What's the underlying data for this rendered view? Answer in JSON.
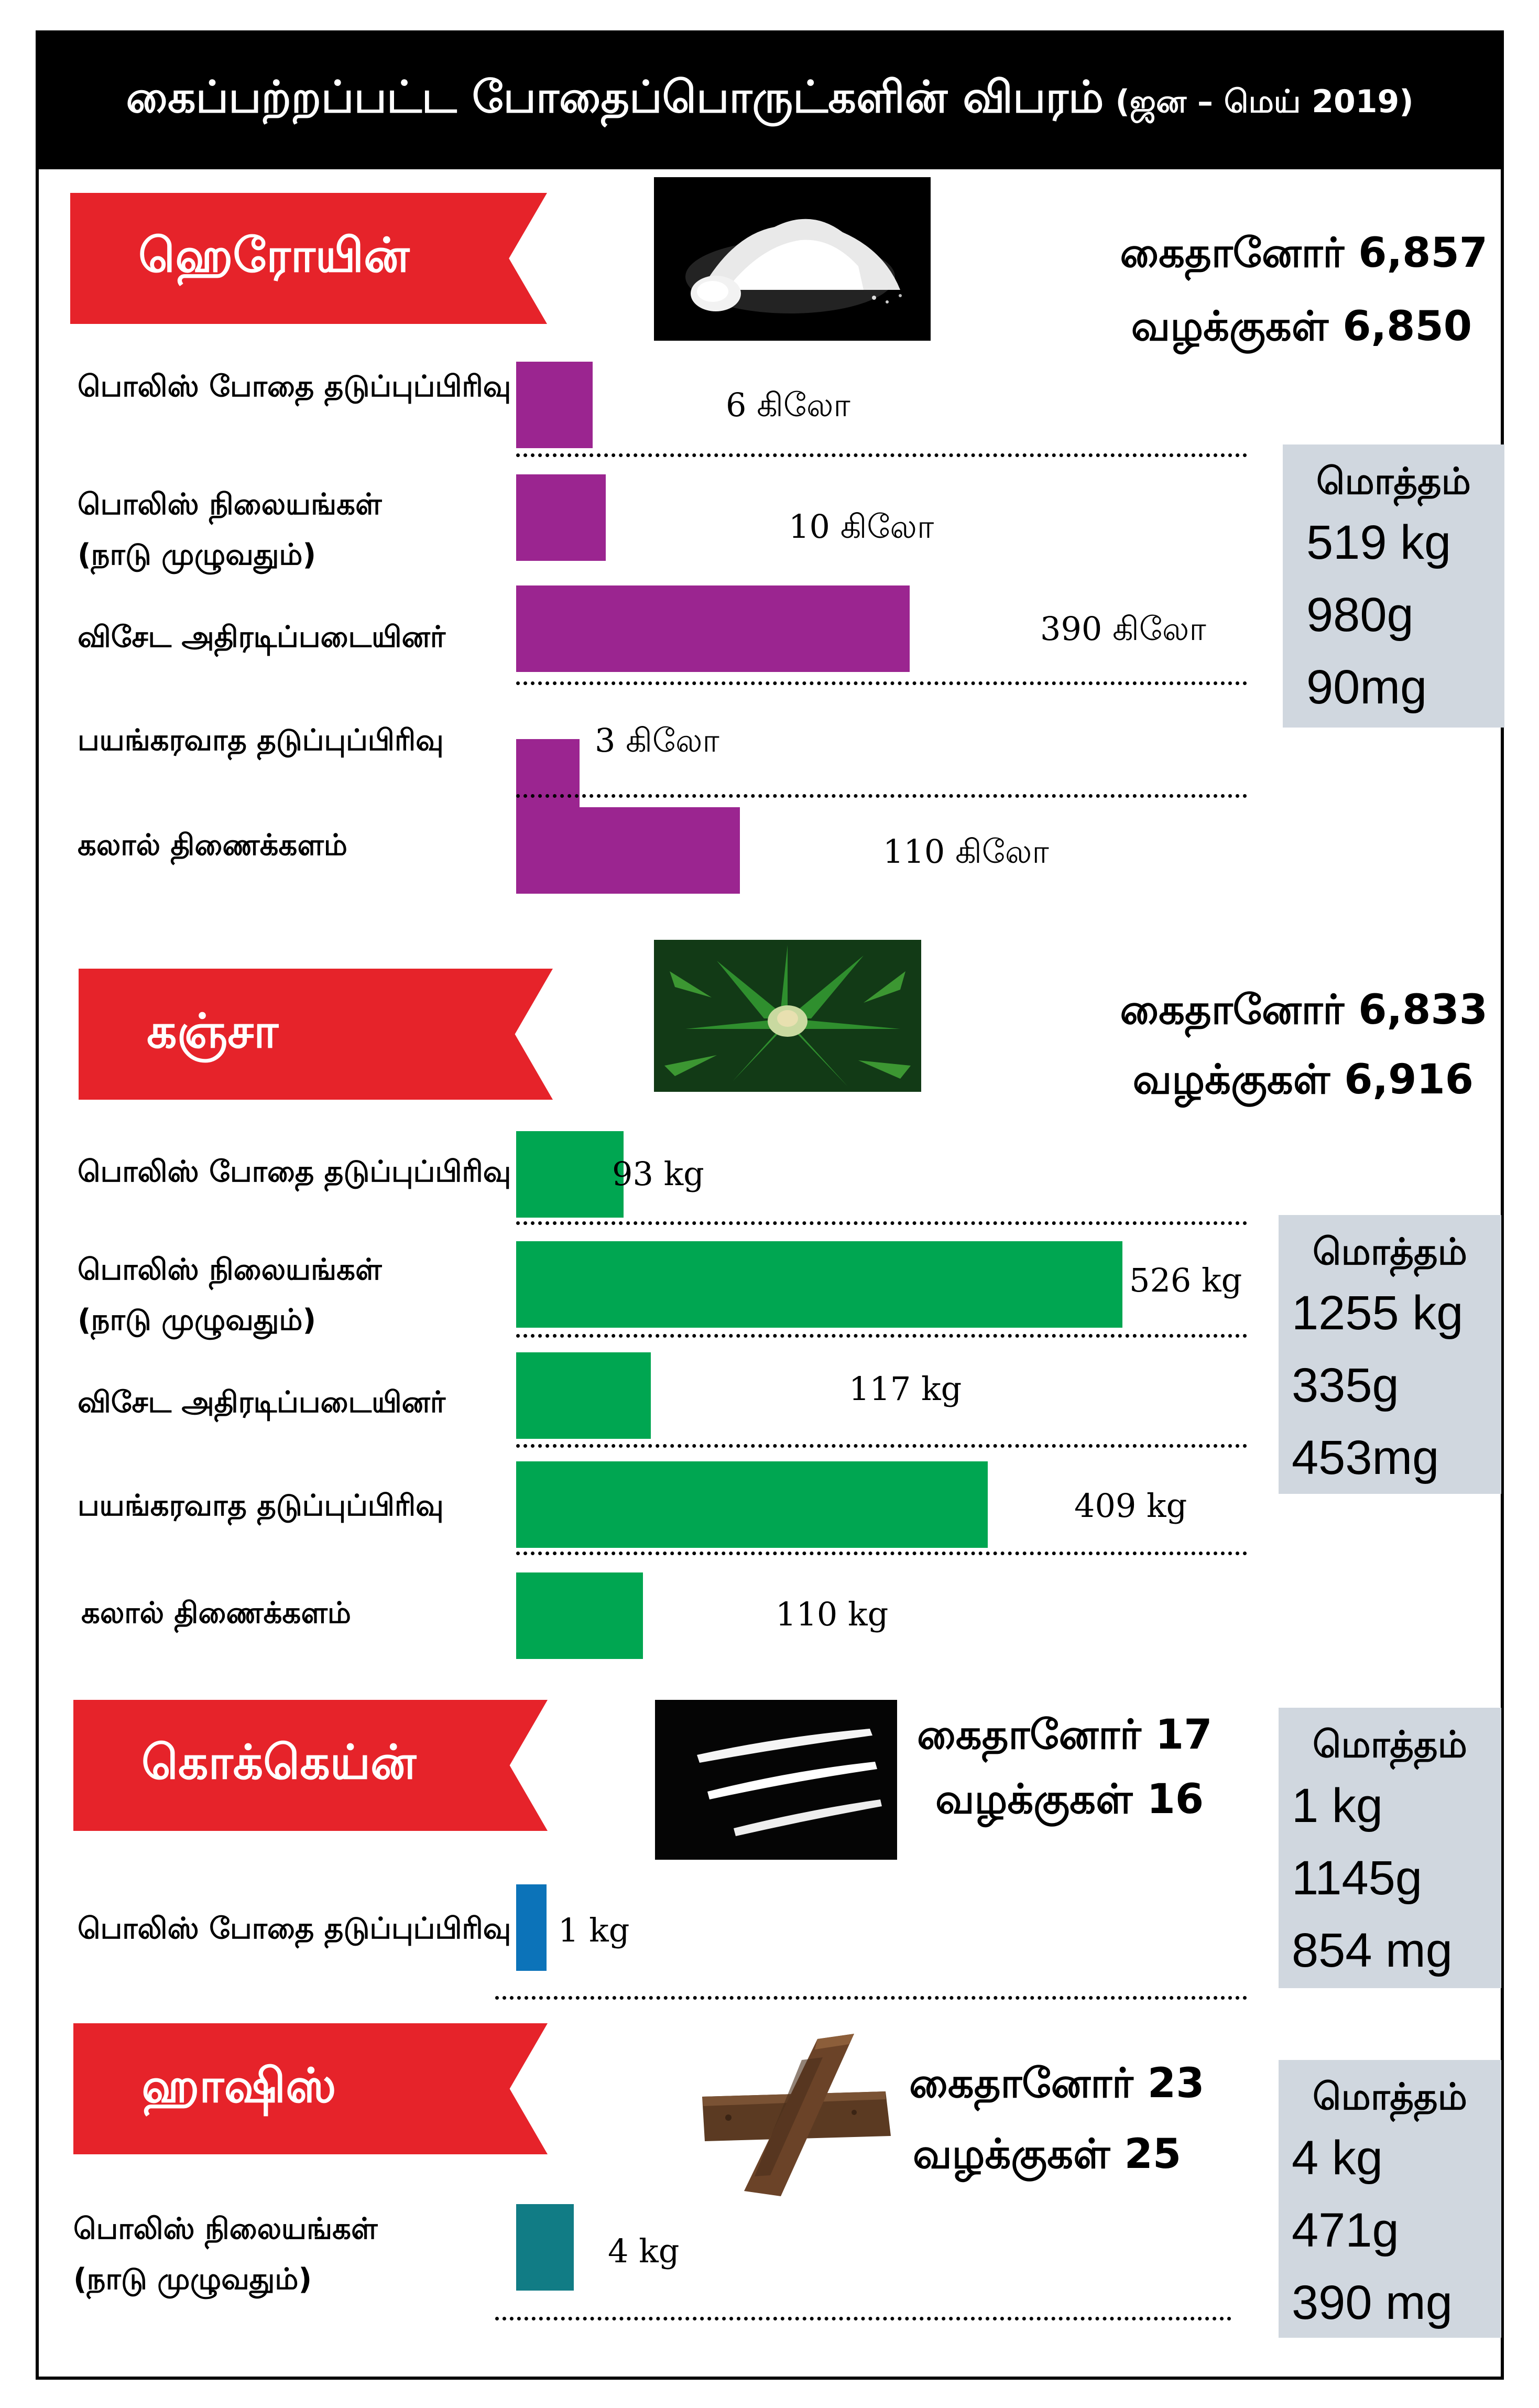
{
  "header": {
    "title": "கைப்பற்றப்பட்ட போதைப்பொருட்களின் விபரம்",
    "period": "(ஜன – மெய் 2019)"
  },
  "colors": {
    "heroin": "#9b2590",
    "ganja": "#00a651",
    "cocaine": "#0c73b9",
    "hashish": "#117c85",
    "ribbon": "#e6232a",
    "total_box": "#d0d7df"
  },
  "sections": {
    "heroin": {
      "name": "ஹெரோயின்",
      "image_icon": "white-powder-photo",
      "suspects": "கைதானோர் 6,857",
      "cases": "வழக்குகள் 6,850",
      "total": {
        "heading": "மொத்தம்",
        "lines": [
          "519 kg",
          "980g",
          "90mg"
        ]
      }
    },
    "ganja": {
      "name": "கஞ்சா",
      "image_icon": "cannabis-plant-photo",
      "suspects": "கைதானோர் 6,833",
      "cases": "வழக்குகள் 6,916",
      "total": {
        "heading": "மொத்தம்",
        "lines": [
          "1255 kg",
          "335g",
          "453mg"
        ]
      }
    },
    "cocaine": {
      "name": "கொக்கெய்ன்",
      "image_icon": "cocaine-lines-photo",
      "suspects": "கைதானோர் 17",
      "cases": "வழக்குகள் 16",
      "total": {
        "heading": "மொத்தம்",
        "lines": [
          "1 kg",
          "1145g",
          "854 mg"
        ]
      }
    },
    "hashish": {
      "name": "ஹாஷிஸ்",
      "image_icon": "hashish-block-photo",
      "suspects": "கைதானோர் 23",
      "cases": "வழக்குகள் 25",
      "total": {
        "heading": "மொத்தம்",
        "lines": [
          "4 kg",
          "471g",
          "390 mg"
        ]
      }
    }
  },
  "chart_data": [
    {
      "type": "bar",
      "orientation": "horizontal",
      "series_name": "ஹெரோயின்",
      "categories": [
        "பொலிஸ் போதை தடுப்புப்பிரிவு",
        "பொலிஸ் நிலையங்கள் (நாடு முழுவதும்)",
        "விசேட அதிரடிப்படையினர்",
        "பயங்கரவாத தடுப்புப்பிரிவு",
        "கலால் திணைக்களம்"
      ],
      "values": [
        6,
        10,
        390,
        3,
        110
      ],
      "unit": "kg",
      "data_labels": [
        "6 கிலோ",
        "10 கிலோ",
        "390 கிலோ",
        "3 கிலோ",
        "110 கிலோ"
      ]
    },
    {
      "type": "bar",
      "orientation": "horizontal",
      "series_name": "கஞ்சா",
      "categories": [
        "பொலிஸ் போதை தடுப்புப்பிரிவு",
        "பொலிஸ் நிலையங்கள் (நாடு முழுவதும்)",
        "விசேட அதிரடிப்படையினர்",
        "பயங்கரவாத தடுப்புப்பிரிவு",
        "கலால் திணைக்களம்"
      ],
      "values": [
        93,
        526,
        117,
        409,
        110
      ],
      "unit": "kg",
      "data_labels": [
        "93 kg",
        "526 kg",
        "117 kg",
        "409 kg",
        "110 kg"
      ]
    },
    {
      "type": "bar",
      "orientation": "horizontal",
      "series_name": "கொக்கெய்ன்",
      "categories": [
        "பொலிஸ் போதை தடுப்புப்பிரிவு"
      ],
      "values": [
        1
      ],
      "unit": "kg",
      "data_labels": [
        "1 kg"
      ]
    },
    {
      "type": "bar",
      "orientation": "horizontal",
      "series_name": "ஹாஷிஸ்",
      "categories": [
        "பொலிஸ் நிலையங்கள் (நாடு முழுவதும்)"
      ],
      "values": [
        4
      ],
      "unit": "kg",
      "data_labels": [
        "4 kg"
      ]
    }
  ]
}
